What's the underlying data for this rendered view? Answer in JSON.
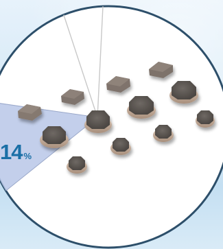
{
  "highlight": {
    "value": "14",
    "unit": "%"
  },
  "chart_data": {
    "type": "pie",
    "slices": [
      {
        "value": 14,
        "highlighted": true
      },
      {
        "value": 86,
        "highlighted": false
      }
    ]
  },
  "colors": {
    "circle_fill": "#ffffff",
    "circle_border": "#2d4f6a",
    "highlight_wedge": "#b9c7e8",
    "divider_line": "#c8c8c8",
    "label_text": "#1a6fa6",
    "component_body": "#7a6e66",
    "component_top": "#625a56"
  },
  "components": {
    "shape_types": [
      "square-inductor",
      "octagonal-inductor"
    ]
  }
}
